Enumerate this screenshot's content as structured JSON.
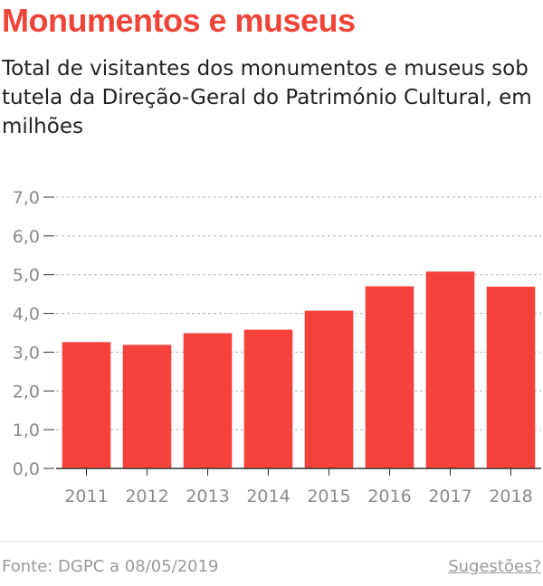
{
  "header": {
    "title": "Monumentos e museus",
    "subtitle": "Total de visitantes dos monumentos e museus sob tutela da Direção-Geral do Património Cultural, em milhões"
  },
  "footer": {
    "source": "Fonte: DGPC a 08/05/2019",
    "suggestions": "Sugestões?"
  },
  "colors": {
    "bar": "#f5423b",
    "grid": "#b5b5b5",
    "axis": "#333333"
  },
  "chart_data": {
    "type": "bar",
    "categories": [
      "2011",
      "2012",
      "2013",
      "2014",
      "2015",
      "2016",
      "2017",
      "2018"
    ],
    "values": [
      3.26,
      3.19,
      3.49,
      3.58,
      4.07,
      4.7,
      5.08,
      4.69
    ],
    "ylim": [
      0,
      7
    ],
    "yticks": [
      0,
      1,
      2,
      3,
      4,
      5,
      6,
      7
    ],
    "ytick_labels": [
      "0,0",
      "1,0",
      "2,0",
      "3,0",
      "4,0",
      "5,0",
      "6,0",
      "7,0"
    ],
    "grid": true,
    "xlabel": "",
    "ylabel": ""
  }
}
